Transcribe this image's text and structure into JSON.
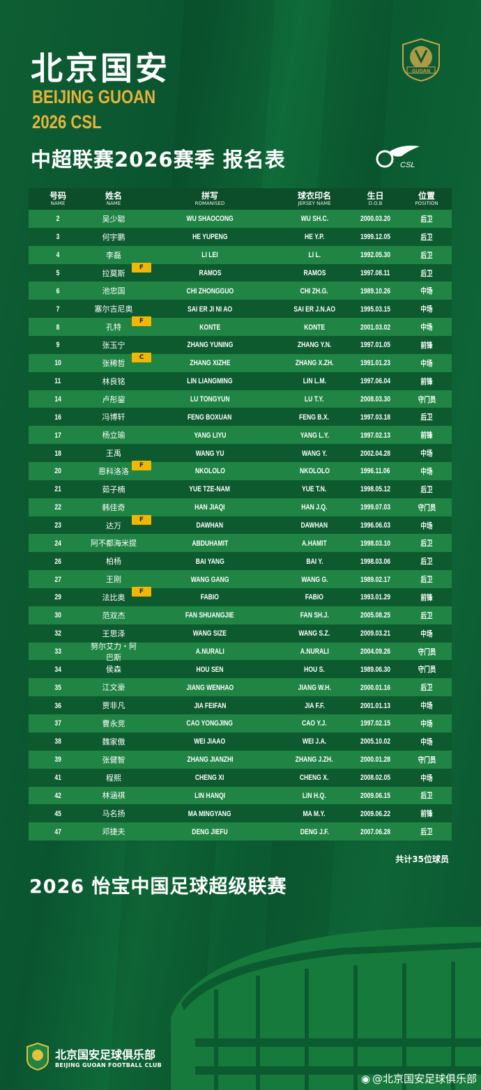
{
  "header": {
    "title_cn": "北京国安",
    "title_en_1": "BEIJING GUOAN",
    "title_en_2": "2026 CSL",
    "subtitle": "中超联赛2026赛季 报名表",
    "crest_text": "GUOAN",
    "csl_logo_text": "CSL"
  },
  "colors": {
    "gold": "#e6b43a",
    "badge": "#f2b705",
    "row_light": "#1f8444",
    "row_dark": "#0d5a2f"
  },
  "table": {
    "columns": [
      {
        "cn": "号码",
        "en": "NAME"
      },
      {
        "cn": "姓名",
        "en": "NAME"
      },
      {
        "cn": "拼写",
        "en": "ROMANISED"
      },
      {
        "cn": "球衣印名",
        "en": "JERSEY NAME"
      },
      {
        "cn": "生日",
        "en": "D.O.B"
      },
      {
        "cn": "位置",
        "en": "POSITION"
      }
    ],
    "rows": [
      [
        "2",
        "吴少聪",
        "",
        "WU SHAOCONG",
        "WU SH.C.",
        "2000.03.20",
        "后卫"
      ],
      [
        "3",
        "何宇鹏",
        "",
        "HE YUPENG",
        "HE Y.P.",
        "1999.12.05",
        "后卫"
      ],
      [
        "4",
        "李磊",
        "",
        "LI LEI",
        "LI L.",
        "1992.05.30",
        "后卫"
      ],
      [
        "5",
        "拉莫斯",
        "F",
        "RAMOS",
        "RAMOS",
        "1997.08.11",
        "后卫"
      ],
      [
        "6",
        "池忠国",
        "",
        "CHI ZHONGGUO",
        "CHI ZH.G.",
        "1989.10.26",
        "中场"
      ],
      [
        "7",
        "塞尔吉尼奥",
        "",
        "SAI ER JI NI AO",
        "SAI ER J.N.AO",
        "1995.03.15",
        "中场"
      ],
      [
        "8",
        "孔特",
        "F",
        "KONTE",
        "KONTE",
        "2001.03.02",
        "中场"
      ],
      [
        "9",
        "张玉宁",
        "",
        "ZHANG YUNING",
        "ZHANG Y.N.",
        "1997.01.05",
        "前锋"
      ],
      [
        "10",
        "张稀哲",
        "C",
        "ZHANG XIZHE",
        "ZHANG X.ZH.",
        "1991.01.23",
        "中场"
      ],
      [
        "11",
        "林良铭",
        "",
        "LIN LIANGMING",
        "LIN L.M.",
        "1997.06.04",
        "前锋"
      ],
      [
        "14",
        "卢彤鋆",
        "",
        "LU TONGYUN",
        "LU T.Y.",
        "2008.03.30",
        "守门员"
      ],
      [
        "16",
        "冯博轩",
        "",
        "FENG BOXUAN",
        "FENG B.X.",
        "1997.03.18",
        "后卫"
      ],
      [
        "17",
        "杨立瑜",
        "",
        "YANG LIYU",
        "YANG L.Y.",
        "1997.02.13",
        "前锋"
      ],
      [
        "18",
        "王禹",
        "",
        "WANG YU",
        "WANG Y.",
        "2002.04.28",
        "中场"
      ],
      [
        "20",
        "恩科洛洛",
        "F",
        "NKOLOLO",
        "NKOLOLO",
        "1996.11.06",
        "中场"
      ],
      [
        "21",
        "茹子楠",
        "",
        "YUE TZE-NAM",
        "YUE T.N.",
        "1998.05.12",
        "后卫"
      ],
      [
        "22",
        "韩佳奇",
        "",
        "HAN JIAQI",
        "HAN J.Q.",
        "1999.07.03",
        "守门员"
      ],
      [
        "23",
        "达万",
        "F",
        "DAWHAN",
        "DAWHAN",
        "1996.06.03",
        "中场"
      ],
      [
        "24",
        "阿不都海米提",
        "",
        "ABDUHAMIT",
        "A.HAMIT",
        "1998.03.10",
        "后卫"
      ],
      [
        "26",
        "柏杨",
        "",
        "BAI YANG",
        "BAI Y.",
        "1998.03.06",
        "后卫"
      ],
      [
        "27",
        "王刚",
        "",
        "WANG GANG",
        "WANG G.",
        "1989.02.17",
        "后卫"
      ],
      [
        "29",
        "法比奥",
        "F",
        "FABIO",
        "FABIO",
        "1993.01.29",
        "前锋"
      ],
      [
        "30",
        "范双杰",
        "",
        "FAN SHUANGJIE",
        "FAN SH.J.",
        "2005.08.25",
        "后卫"
      ],
      [
        "32",
        "王思泽",
        "",
        "WANG SIZE",
        "WANG S.Z.",
        "2009.03.21",
        "中场"
      ],
      [
        "33",
        "努尔艾力・阿巴斯",
        "",
        "A.NURALI",
        "A.NURALI",
        "2004.09.26",
        "守门员"
      ],
      [
        "34",
        "侯森",
        "",
        "HOU SEN",
        "HOU S.",
        "1989.06.30",
        "守门员"
      ],
      [
        "35",
        "江文豪",
        "",
        "JIANG WENHAO",
        "JIANG W.H.",
        "2000.01.16",
        "后卫"
      ],
      [
        "36",
        "贾非凡",
        "",
        "JIA FEIFAN",
        "JIA F.F.",
        "2001.01.13",
        "中场"
      ],
      [
        "37",
        "曹永竞",
        "",
        "CAO YONGJING",
        "CAO Y.J.",
        "1997.02.15",
        "中场"
      ],
      [
        "38",
        "魏家傲",
        "",
        "WEI JIAAO",
        "WEI J.A.",
        "2005.10.02",
        "中场"
      ],
      [
        "39",
        "张健智",
        "",
        "ZHANG JIANZHI",
        "ZHANG J.ZH.",
        "2000.01.28",
        "守门员"
      ],
      [
        "41",
        "程熙",
        "",
        "CHENG XI",
        "CHENG X.",
        "2008.02.05",
        "中场"
      ],
      [
        "42",
        "林涵祺",
        "",
        "LIN HANQI",
        "LIN H.Q.",
        "2009.06.15",
        "后卫"
      ],
      [
        "45",
        "马名扬",
        "",
        "MA MINGYANG",
        "MA M.Y.",
        "2009.06.22",
        "前锋"
      ],
      [
        "47",
        "邓捷夫",
        "",
        "DENG JIEFU",
        "DENG J.F.",
        "2007.06.28",
        "后卫"
      ]
    ]
  },
  "footer": {
    "total": "共计35位球员",
    "league": "2026 怡宝中国足球超级联赛",
    "club_cn": "北京国安足球俱乐部",
    "club_en": "BEIJING GUOAN FOOTBALL CLUB",
    "weibo": "@北京国安足球俱乐部"
  }
}
